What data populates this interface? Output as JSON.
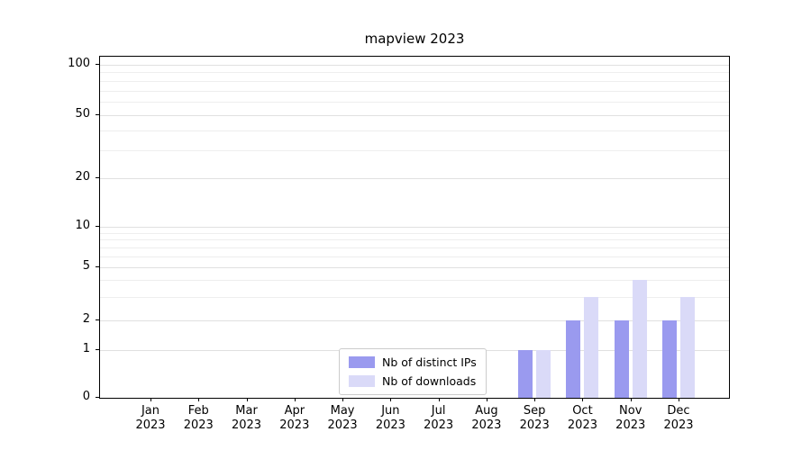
{
  "chart_data": {
    "type": "bar",
    "title": "mapview 2023",
    "categories": [
      "Jan 2023",
      "Feb 2023",
      "Mar 2023",
      "Apr 2023",
      "May 2023",
      "Jun 2023",
      "Jul 2023",
      "Aug 2023",
      "Sep 2023",
      "Oct 2023",
      "Nov 2023",
      "Dec 2023"
    ],
    "series": [
      {
        "name": "Nb of distinct IPs",
        "color": "#9a9aef",
        "values": [
          0,
          0,
          0,
          0,
          0,
          0,
          0,
          0,
          1,
          2,
          2,
          2
        ]
      },
      {
        "name": "Nb of downloads",
        "color": "#dadaf8",
        "values": [
          0,
          0,
          0,
          0,
          0,
          0,
          0,
          0,
          1,
          3,
          4,
          3
        ]
      }
    ],
    "yticks": [
      0,
      1,
      2,
      5,
      10,
      20,
      50,
      100
    ],
    "minor_gridlines": [
      3,
      4,
      6,
      7,
      8,
      9,
      30,
      40,
      60,
      70,
      80,
      90
    ],
    "yscale": "symlog",
    "ylim": [
      0,
      110
    ],
    "xlabel": "",
    "ylabel": "",
    "grid": "horizontal",
    "legend_position": "lower center"
  }
}
